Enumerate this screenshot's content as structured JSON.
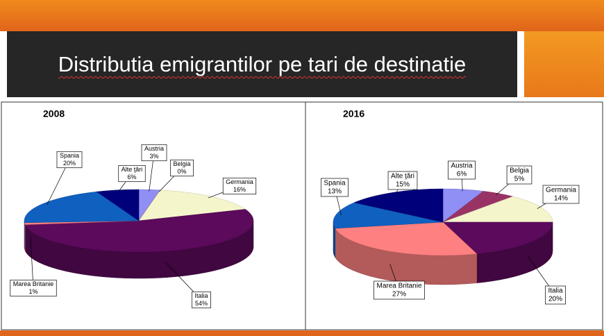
{
  "title": "Distributia emigrantilor pe tari de destinatie",
  "chart_data": [
    {
      "type": "pie",
      "title": "2008",
      "categories": [
        "Austria",
        "Belgia",
        "Germania",
        "Italia",
        "Marea Britanie",
        "Spania",
        "Alte ţări"
      ],
      "values": [
        3,
        0,
        16,
        54,
        1,
        20,
        6
      ],
      "value_labels": [
        "3%",
        "0%",
        "16%",
        "54%",
        "1%",
        "20%",
        "6%"
      ],
      "colors": [
        "#8f8ff5",
        "#993366",
        "#f5f5cc",
        "#5c0a5c",
        "#ff8080",
        "#1060c0",
        "#00007a"
      ]
    },
    {
      "type": "pie",
      "title": "2016",
      "categories": [
        "Austria",
        "Belgia",
        "Germania",
        "Italia",
        "Marea Britanie",
        "Spania",
        "Alte ţări"
      ],
      "values": [
        6,
        5,
        14,
        20,
        27,
        13,
        15
      ],
      "value_labels": [
        "6%",
        "5%",
        "14%",
        "20%",
        "27%",
        "13%",
        "15%"
      ],
      "colors": [
        "#8f8ff5",
        "#993366",
        "#f5f5cc",
        "#5c0a5c",
        "#ff8080",
        "#1060c0",
        "#00007a"
      ]
    }
  ]
}
